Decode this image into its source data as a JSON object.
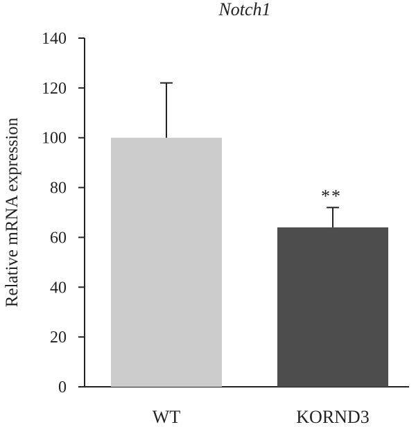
{
  "chart_data": {
    "type": "bar",
    "title": "Notch1",
    "xlabel": "",
    "ylabel": "Relative mRNA expression",
    "ylim": [
      0,
      140
    ],
    "yticks": [
      0,
      20,
      40,
      60,
      80,
      100,
      120,
      140
    ],
    "categories": [
      "WT",
      "KORND3"
    ],
    "series": [
      {
        "values": [
          100,
          64
        ],
        "errors": [
          22,
          8
        ],
        "colors": [
          "#cccccc",
          "#4d4d4d"
        ],
        "annotations": [
          "",
          "**"
        ]
      }
    ],
    "grid": false,
    "legend": "none"
  }
}
